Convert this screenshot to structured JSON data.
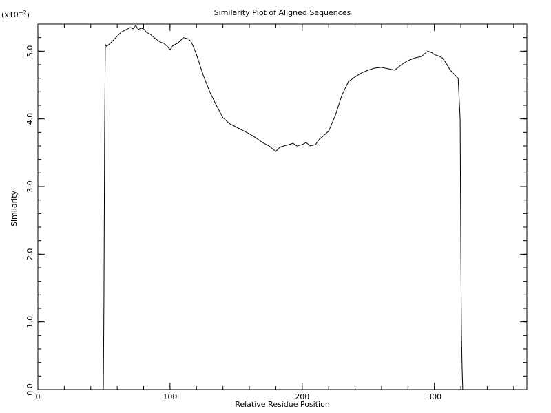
{
  "chart_data": {
    "type": "line",
    "title": "Similarity Plot of Aligned Sequences",
    "xlabel": "Relative Residue Position",
    "ylabel": "Similarity",
    "y_multiplier_base": "(x10",
    "y_multiplier_exp": "−2",
    "y_multiplier_close": ")",
    "xlim": [
      0,
      370
    ],
    "ylim": [
      0.0,
      5.4
    ],
    "x_major_ticks": [
      0,
      100,
      200,
      300
    ],
    "x_minor_step": 20,
    "y_major_ticks": [
      0.0,
      1.0,
      2.0,
      3.0,
      4.0,
      5.0
    ],
    "y_minor_step": 0.2,
    "y_tick_labels": [
      "0.0",
      "1.0",
      "2.0",
      "3.0",
      "4.0",
      "5.0"
    ],
    "x_tick_labels": [
      "0",
      "100",
      "200",
      "300"
    ],
    "grid": false,
    "series": [
      {
        "x": [
          49.5,
          50,
          50.5,
          51,
          52,
          55,
          58,
          60,
          63,
          65,
          68,
          70,
          72,
          74,
          76,
          78,
          80,
          82,
          85,
          88,
          90,
          93,
          95,
          98,
          100,
          102,
          104,
          106,
          108,
          110,
          112,
          114,
          116,
          118,
          120,
          125,
          130,
          135,
          140,
          145,
          150,
          155,
          160,
          165,
          170,
          175,
          178,
          180,
          183,
          186,
          190,
          193,
          196,
          200,
          203,
          206,
          210,
          213,
          216,
          220,
          225,
          230,
          235,
          240,
          245,
          250,
          255,
          260,
          265,
          270,
          275,
          280,
          285,
          290,
          295,
          298,
          300,
          303,
          306,
          309,
          312,
          315,
          318,
          319.5,
          320,
          320.5,
          321,
          321.5,
          322
        ],
        "y": [
          0.0,
          1.3,
          3.8,
          5.1,
          5.07,
          5.12,
          5.18,
          5.22,
          5.28,
          5.3,
          5.33,
          5.35,
          5.33,
          5.38,
          5.32,
          5.34,
          5.33,
          5.28,
          5.25,
          5.2,
          5.17,
          5.13,
          5.12,
          5.07,
          5.02,
          5.08,
          5.1,
          5.12,
          5.16,
          5.2,
          5.19,
          5.18,
          5.14,
          5.05,
          4.95,
          4.65,
          4.4,
          4.2,
          4.02,
          3.93,
          3.88,
          3.83,
          3.78,
          3.72,
          3.65,
          3.6,
          3.55,
          3.52,
          3.58,
          3.6,
          3.62,
          3.64,
          3.6,
          3.62,
          3.65,
          3.6,
          3.62,
          3.7,
          3.75,
          3.82,
          4.05,
          4.35,
          4.55,
          4.62,
          4.68,
          4.72,
          4.75,
          4.76,
          4.74,
          4.72,
          4.8,
          4.86,
          4.9,
          4.92,
          5.0,
          4.98,
          4.95,
          4.93,
          4.9,
          4.82,
          4.72,
          4.66,
          4.6,
          4.0,
          2.0,
          0.8,
          0.3,
          0.0,
          0.0
        ]
      }
    ]
  }
}
